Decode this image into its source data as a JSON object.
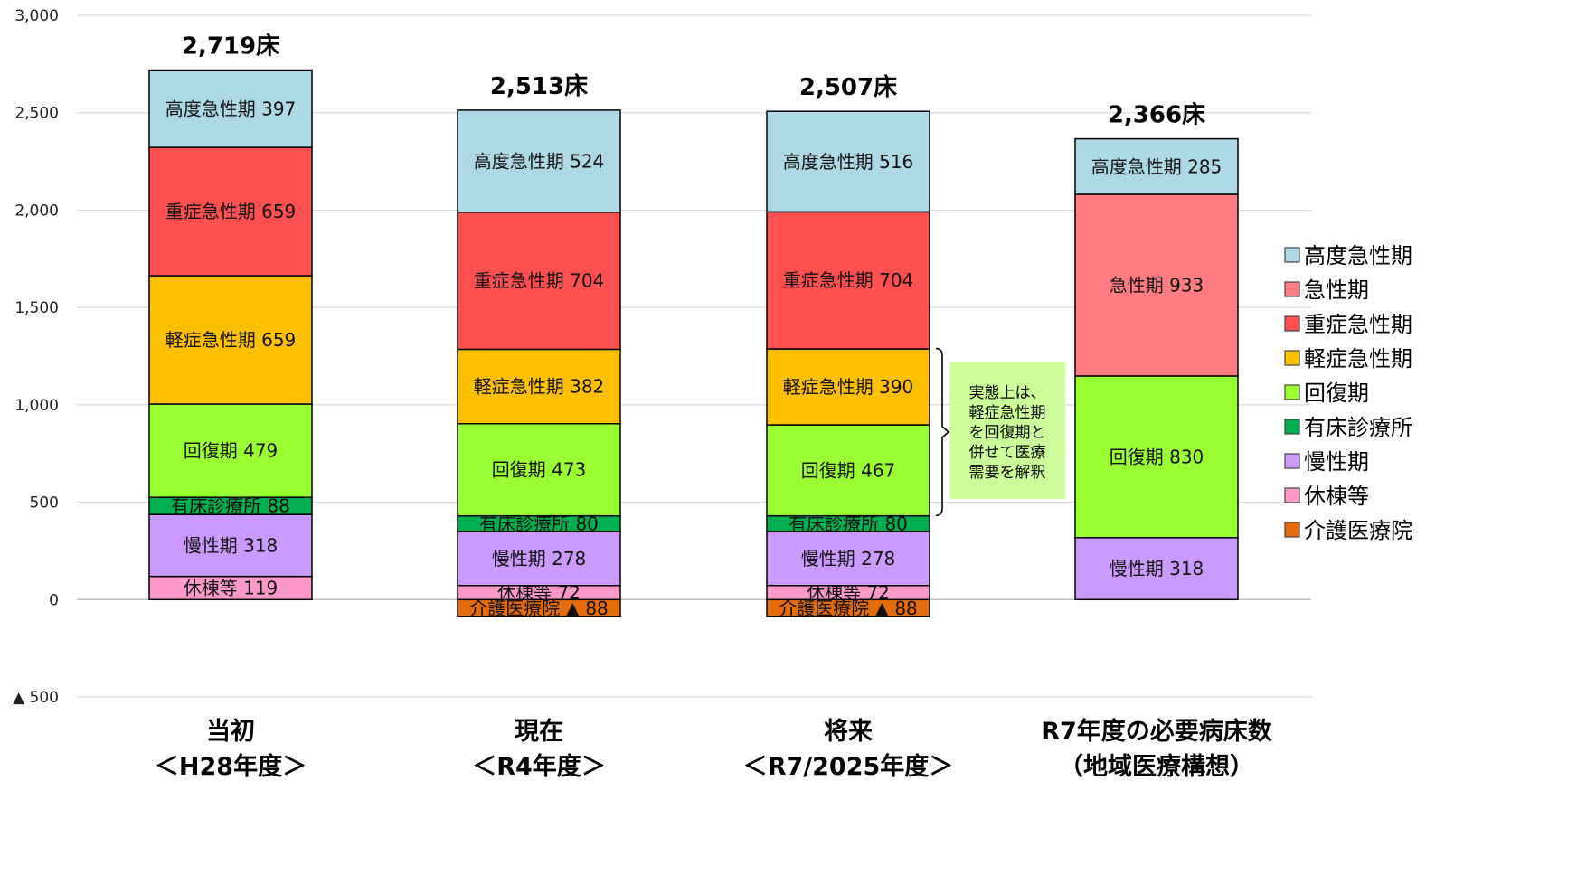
{
  "chart_data": {
    "type": "bar",
    "stacked": true,
    "ylim": [
      -500,
      3000
    ],
    "yticks": [
      {
        "value": 3000,
        "label": "3,000"
      },
      {
        "value": 2500,
        "label": "2,500"
      },
      {
        "value": 2000,
        "label": "2,000"
      },
      {
        "value": 1500,
        "label": "1,500"
      },
      {
        "value": 1000,
        "label": "1,000"
      },
      {
        "value": 500,
        "label": "500"
      },
      {
        "value": 0,
        "label": "0"
      },
      {
        "value": -500,
        "label": "▲ 500"
      }
    ],
    "grid": true,
    "legend_position": "right",
    "series": [
      {
        "name": "高度急性期",
        "color": "#ADD8E6"
      },
      {
        "name": "急性期",
        "color": "#FF7C80"
      },
      {
        "name": "重症急性期",
        "color": "#FF5050"
      },
      {
        "name": "軽症急性期",
        "color": "#FFC000"
      },
      {
        "name": "回復期",
        "color": "#99FF33"
      },
      {
        "name": "有床診療所",
        "color": "#00B050"
      },
      {
        "name": "慢性期",
        "color": "#CC99FF"
      },
      {
        "name": "休棟等",
        "color": "#FF99CC"
      },
      {
        "name": "介護医療院",
        "color": "#E46C0A"
      }
    ],
    "categories": [
      {
        "line1": "当初",
        "line2": "＜H28年度＞",
        "total_label": "2,719床",
        "segments": [
          {
            "series": "休棟等",
            "value": 119,
            "label": "休棟等 119"
          },
          {
            "series": "慢性期",
            "value": 318,
            "label": "慢性期 318"
          },
          {
            "series": "有床診療所",
            "value": 88,
            "label": "有床診療所 88"
          },
          {
            "series": "回復期",
            "value": 479,
            "label": "回復期 479"
          },
          {
            "series": "軽症急性期",
            "value": 659,
            "label": "軽症急性期 659"
          },
          {
            "series": "重症急性期",
            "value": 659,
            "label": "重症急性期 659"
          },
          {
            "series": "高度急性期",
            "value": 397,
            "label": "高度急性期 397"
          }
        ]
      },
      {
        "line1": "現在",
        "line2": "＜R4年度＞",
        "total_label": "2,513床",
        "segments": [
          {
            "series": "介護医療院",
            "value": -88,
            "label": "介護医療院 ▲ 88"
          },
          {
            "series": "休棟等",
            "value": 72,
            "label": "休棟等 72"
          },
          {
            "series": "慢性期",
            "value": 278,
            "label": "慢性期 278"
          },
          {
            "series": "有床診療所",
            "value": 80,
            "label": "有床診療所 80"
          },
          {
            "series": "回復期",
            "value": 473,
            "label": "回復期 473"
          },
          {
            "series": "軽症急性期",
            "value": 382,
            "label": "軽症急性期 382"
          },
          {
            "series": "重症急性期",
            "value": 704,
            "label": "重症急性期 704"
          },
          {
            "series": "高度急性期",
            "value": 524,
            "label": "高度急性期 524"
          }
        ]
      },
      {
        "line1": "将来",
        "line2": "＜R7/2025年度＞",
        "total_label": "2,507床",
        "segments": [
          {
            "series": "介護医療院",
            "value": -88,
            "label": "介護医療院 ▲ 88"
          },
          {
            "series": "休棟等",
            "value": 72,
            "label": "休棟等 72"
          },
          {
            "series": "慢性期",
            "value": 278,
            "label": "慢性期 278"
          },
          {
            "series": "有床診療所",
            "value": 80,
            "label": "有床診療所 80"
          },
          {
            "series": "回復期",
            "value": 467,
            "label": "回復期 467"
          },
          {
            "series": "軽症急性期",
            "value": 390,
            "label": "軽症急性期 390"
          },
          {
            "series": "重症急性期",
            "value": 704,
            "label": "重症急性期 704"
          },
          {
            "series": "高度急性期",
            "value": 516,
            "label": "高度急性期 516"
          }
        ]
      },
      {
        "line1": "R7年度の必要病床数",
        "line2": "（地域医療構想）",
        "total_label": "2,366床",
        "segments": [
          {
            "series": "慢性期",
            "value": 318,
            "label": "慢性期 318"
          },
          {
            "series": "回復期",
            "value": 830,
            "label": "回復期 830"
          },
          {
            "series": "急性期",
            "value": 933,
            "label": "急性期 933"
          },
          {
            "series": "高度急性期",
            "value": 285,
            "label": "高度急性期 285"
          }
        ]
      }
    ],
    "annotation": {
      "lines": [
        "実態上は、",
        "軽症急性期",
        "を回復期と",
        "併せて医療",
        "需要を解釈"
      ],
      "color": "#CCFF99",
      "bracket_from": 432,
      "bracket_to": 1289
    }
  }
}
